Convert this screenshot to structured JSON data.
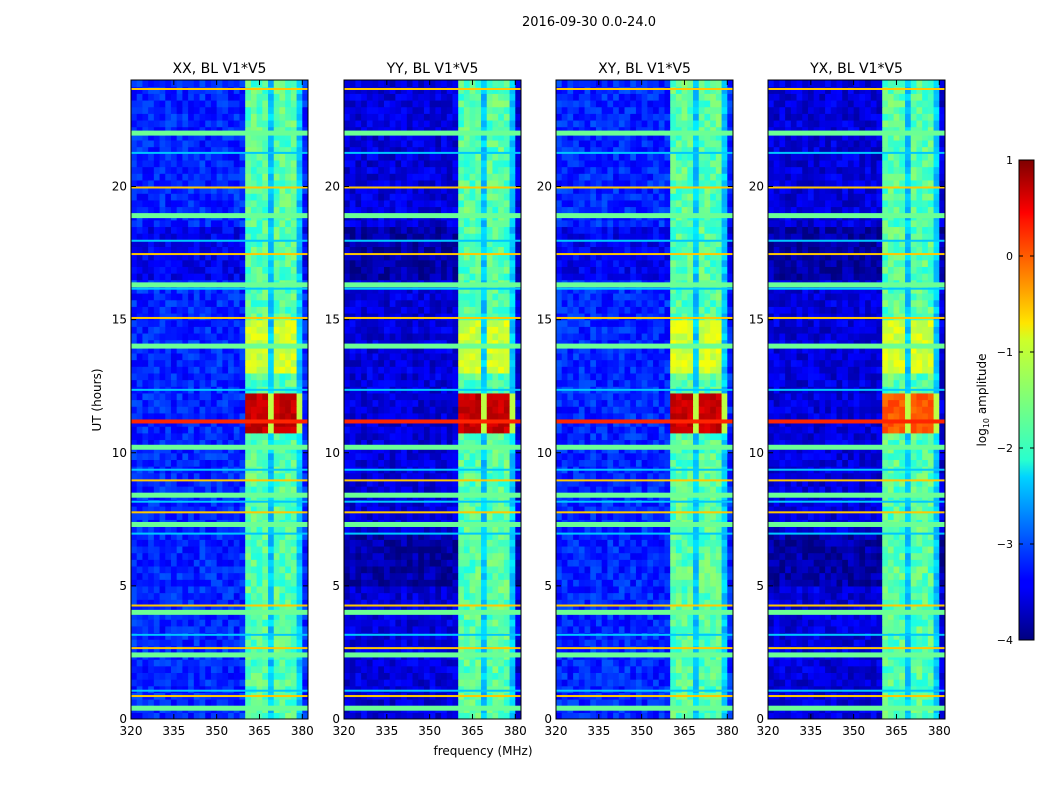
{
  "figure": {
    "suptitle": "2016-09-30 0.0-24.0",
    "xlabel": "frequency (MHz)",
    "ylabel": "UT (hours)"
  },
  "chart_data": {
    "type": "heatmap",
    "title": "2016-09-30 0.0-24.0",
    "xlabel": "frequency (MHz)",
    "ylabel": "UT (hours)",
    "xlim": [
      320,
      382
    ],
    "ylim": [
      0,
      24
    ],
    "xticks": [
      320,
      335,
      350,
      365,
      380
    ],
    "yticks": [
      0,
      5,
      10,
      15,
      20
    ],
    "colormap": "jet",
    "colorbar": {
      "label": "log$_{10}$ amplitude",
      "label_main": "log",
      "label_sub": "10",
      "label_tail": " amplitude",
      "range": [
        -4,
        1
      ],
      "ticks": [
        1,
        0,
        -1,
        -2,
        -3,
        -4
      ],
      "tick_labels": [
        "1",
        "0",
        "−1",
        "−2",
        "−3",
        "−4"
      ]
    },
    "panels": [
      {
        "title": "XX, BL V1*V5",
        "key": "XX"
      },
      {
        "title": "YY, BL V1*V5",
        "key": "YY"
      },
      {
        "title": "XY, BL V1*V5",
        "key": "XY"
      },
      {
        "title": "YX, BL V1*V5",
        "key": "YX"
      }
    ],
    "features": {
      "signal_band_mhz": [
        360,
        380
      ],
      "bright_band_hours": [
        10.8,
        12.2
      ],
      "horizontal_lines_hours": [
        0.5,
        0.9,
        1.1,
        2.5,
        2.7,
        3.2,
        4.1,
        4.3,
        7.0,
        7.4,
        7.8,
        8.2,
        8.5,
        9.0,
        9.4,
        10.3,
        11.2,
        12.4,
        14.1,
        15.1,
        16.2,
        16.4,
        17.5,
        18.0,
        19.0,
        20.0,
        21.3,
        22.1,
        23.7
      ]
    }
  },
  "colors": {
    "background": "#ffffff",
    "axis": "#000000"
  }
}
